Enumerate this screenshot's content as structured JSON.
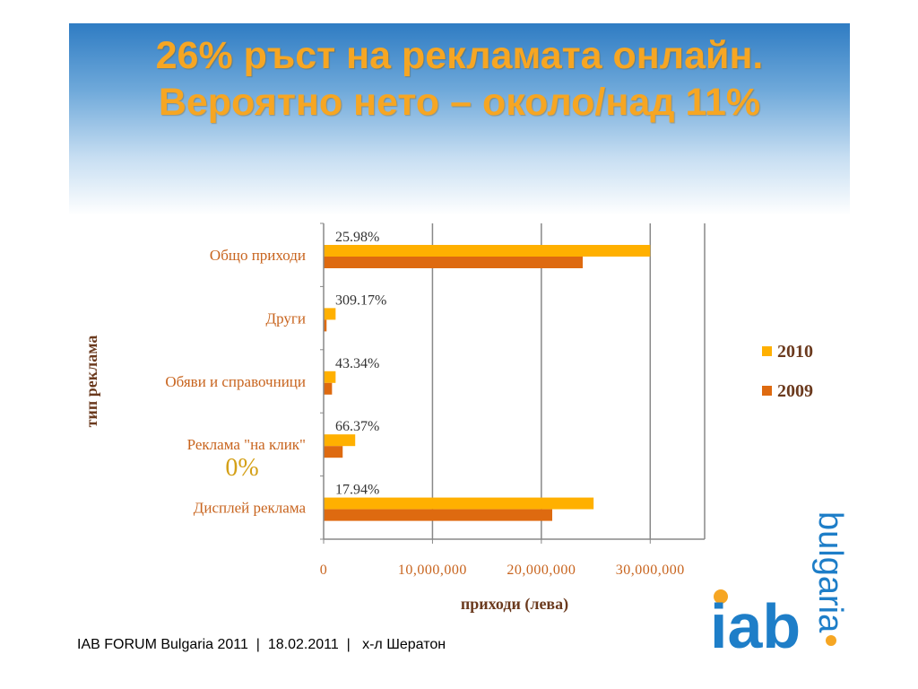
{
  "slide": {
    "title_line1": "26% ръст на рекламата онлайн.",
    "title_line2": "Вероятно нето – около/над 11%",
    "footer": "IAB FORUM Bulgaria 2011  |  18.02.2011  |   х-л Шератон",
    "logo_text_main": "iab",
    "logo_text_side": "bulgaria",
    "colors": {
      "title": "#f6a623",
      "header_top": "#2f7cc3",
      "label": "#c8641e",
      "axis_title": "#6b3a1e"
    }
  },
  "chart_data": {
    "type": "bar",
    "orientation": "horizontal",
    "categories": [
      "Общо приходи",
      "Други",
      "Обяви и справочници",
      "Реклама \"на клик\"",
      "Дисплей реклама"
    ],
    "series": [
      {
        "name": "2010",
        "color": "#ffb000",
        "values": [
          30000000,
          1100000,
          1100000,
          2900000,
          24800000
        ]
      },
      {
        "name": "2009",
        "color": "#de6a10",
        "values": [
          23800000,
          270000,
          770000,
          1750000,
          21000000
        ]
      }
    ],
    "data_labels": [
      "25.98%",
      "309.17%",
      "43.34%",
      "66.37%",
      "17.94%"
    ],
    "extra_annotation": "0%",
    "xlabel": "приходи (лева)",
    "ylabel": "тип реклама",
    "xlim": [
      0,
      35000000
    ],
    "xticks": [
      0,
      10000000,
      20000000,
      30000000
    ],
    "xtick_labels": [
      "0",
      "10,000,000",
      "20,000,000",
      "30,000,000"
    ],
    "grid": true,
    "legend": "right"
  }
}
